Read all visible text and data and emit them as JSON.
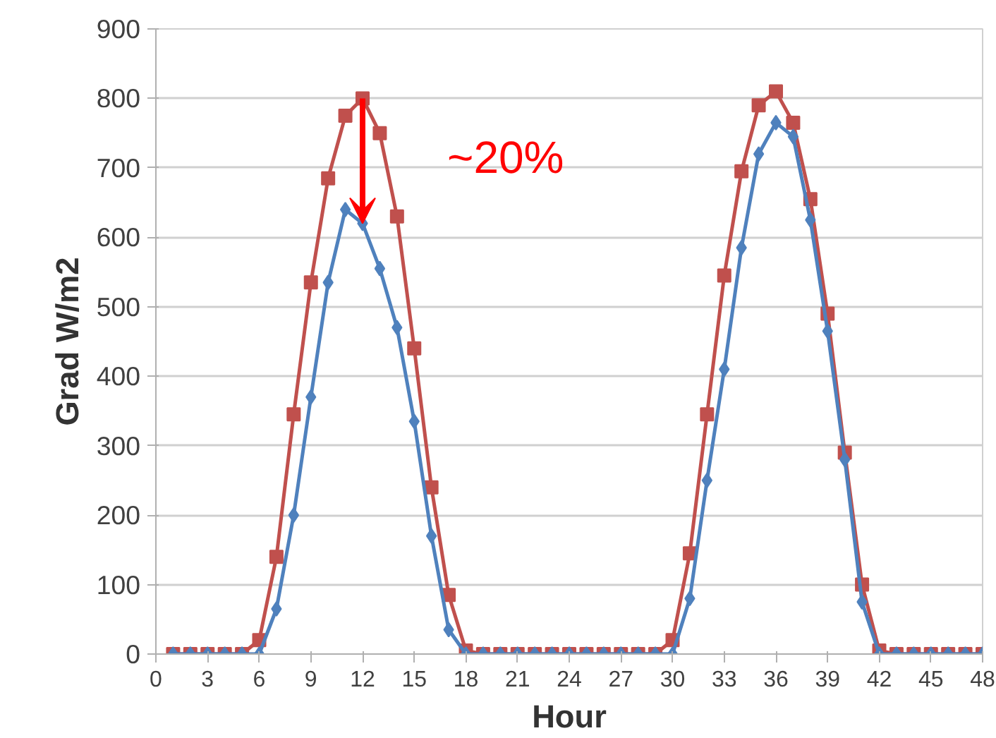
{
  "chart_data": {
    "type": "line",
    "xlabel": "Hour",
    "ylabel": "Grad W/m2",
    "x": [
      1,
      2,
      3,
      4,
      5,
      6,
      7,
      8,
      9,
      10,
      11,
      12,
      13,
      14,
      15,
      16,
      17,
      18,
      19,
      20,
      21,
      22,
      23,
      24,
      25,
      26,
      27,
      28,
      29,
      30,
      31,
      32,
      33,
      34,
      35,
      36,
      37,
      38,
      39,
      40,
      41,
      42,
      43,
      44,
      45,
      46,
      47,
      48
    ],
    "series": [
      {
        "color": "#c0504d",
        "marker": "square",
        "values": [
          0,
          0,
          0,
          0,
          0,
          20,
          140,
          345,
          535,
          685,
          775,
          800,
          750,
          630,
          440,
          240,
          85,
          5,
          0,
          0,
          0,
          0,
          0,
          0,
          0,
          0,
          0,
          0,
          0,
          20,
          145,
          345,
          545,
          695,
          790,
          810,
          765,
          655,
          490,
          290,
          100,
          5,
          0,
          0,
          0,
          0,
          0,
          0
        ]
      },
      {
        "color": "#4f81bd",
        "marker": "diamond",
        "values": [
          0,
          0,
          0,
          0,
          0,
          0,
          65,
          200,
          370,
          535,
          640,
          620,
          555,
          470,
          335,
          170,
          35,
          0,
          0,
          0,
          0,
          0,
          0,
          0,
          0,
          0,
          0,
          0,
          0,
          0,
          80,
          250,
          410,
          585,
          720,
          765,
          745,
          625,
          465,
          280,
          75,
          0,
          0,
          0,
          0,
          0,
          0,
          0
        ]
      }
    ],
    "xlim": [
      0,
      48
    ],
    "xticks": [
      0,
      3,
      6,
      9,
      12,
      15,
      18,
      21,
      24,
      27,
      30,
      33,
      36,
      39,
      42,
      45,
      48
    ],
    "ylim": [
      0,
      900
    ],
    "yticks": [
      0,
      100,
      200,
      300,
      400,
      500,
      600,
      700,
      800,
      900
    ],
    "grid": "y",
    "line_style": "solid",
    "annotations": [
      {
        "text": "~20%",
        "x": 12,
        "y": 800
      }
    ]
  }
}
